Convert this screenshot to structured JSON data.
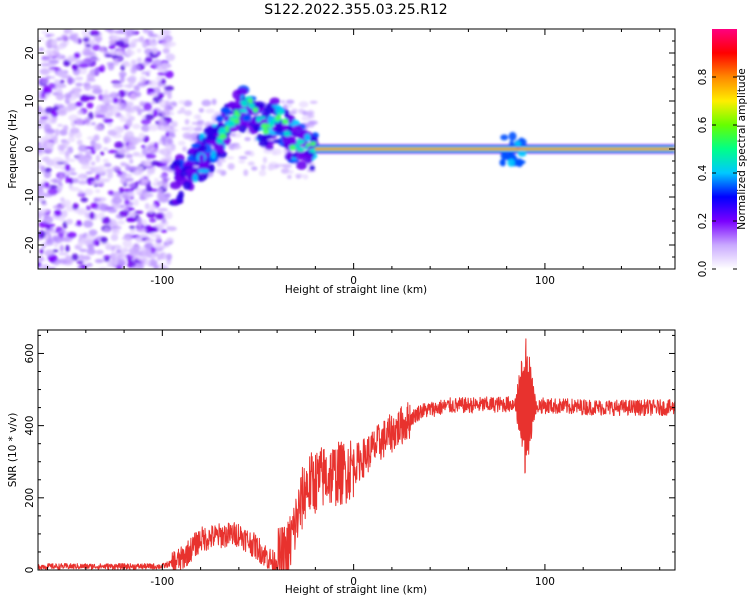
{
  "title": "S122.2022.355.03.25.R12",
  "chart_data": [
    {
      "type": "heatmap",
      "name": "spectrogram",
      "xlabel": "Height of straight line (km)",
      "ylabel": "Frequency (Hz)",
      "xlim": [
        -165,
        168
      ],
      "ylim": [
        -25,
        25
      ],
      "xticks": [
        -100,
        0,
        100
      ],
      "yticks": [
        -20,
        -10,
        0,
        10,
        20
      ],
      "colorbar": {
        "label": "Normalized spectral amplitude",
        "range": [
          0.0,
          1.0
        ],
        "ticks": [
          "0.0",
          "0.2",
          "0.4",
          "0.6",
          "0.8"
        ],
        "colormap": [
          "#ffffff",
          "#c9a9ff",
          "#7a00ff",
          "#0000ff",
          "#00c8ff",
          "#00ff88",
          "#66ff00",
          "#ffee00",
          "#ff8800",
          "#ff0000",
          "#ff0080"
        ]
      },
      "features": {
        "noise_region_x": [
          -165,
          -95
        ],
        "drift_track": [
          [
            -95,
            -8
          ],
          [
            -85,
            -4
          ],
          [
            -75,
            0
          ],
          [
            -65,
            5
          ],
          [
            -55,
            10
          ],
          [
            -45,
            4
          ],
          [
            -38,
            7
          ],
          [
            -32,
            1
          ],
          [
            -20,
            0
          ]
        ],
        "steady_line_x": [
          -20,
          168
        ],
        "steady_line_freq": 0,
        "burst_x": 85
      }
    },
    {
      "type": "line",
      "name": "snr",
      "xlabel": "Height of straight line (km)",
      "ylabel": "SNR (10 * v/v)",
      "xlim": [
        -165,
        168
      ],
      "ylim": [
        0,
        665
      ],
      "xticks": [
        -100,
        0,
        100
      ],
      "yticks": [
        0,
        200,
        400,
        600
      ],
      "color": "#e8322e",
      "envelope": [
        {
          "x": -165,
          "y": 10
        },
        {
          "x": -100,
          "y": 10
        },
        {
          "x": -90,
          "y": 30
        },
        {
          "x": -80,
          "y": 85
        },
        {
          "x": -70,
          "y": 95
        },
        {
          "x": -60,
          "y": 100
        },
        {
          "x": -50,
          "y": 60
        },
        {
          "x": -42,
          "y": 20
        },
        {
          "x": -35,
          "y": 40
        },
        {
          "x": -25,
          "y": 230
        },
        {
          "x": -15,
          "y": 260
        },
        {
          "x": -5,
          "y": 270
        },
        {
          "x": 5,
          "y": 310
        },
        {
          "x": 15,
          "y": 360
        },
        {
          "x": 25,
          "y": 400
        },
        {
          "x": 35,
          "y": 440
        },
        {
          "x": 50,
          "y": 455
        },
        {
          "x": 70,
          "y": 458
        },
        {
          "x": 85,
          "y": 460
        },
        {
          "x": 100,
          "y": 455
        },
        {
          "x": 130,
          "y": 450
        },
        {
          "x": 168,
          "y": 450
        }
      ],
      "burst": {
        "x": 90,
        "max": 660,
        "min": 250
      }
    }
  ]
}
